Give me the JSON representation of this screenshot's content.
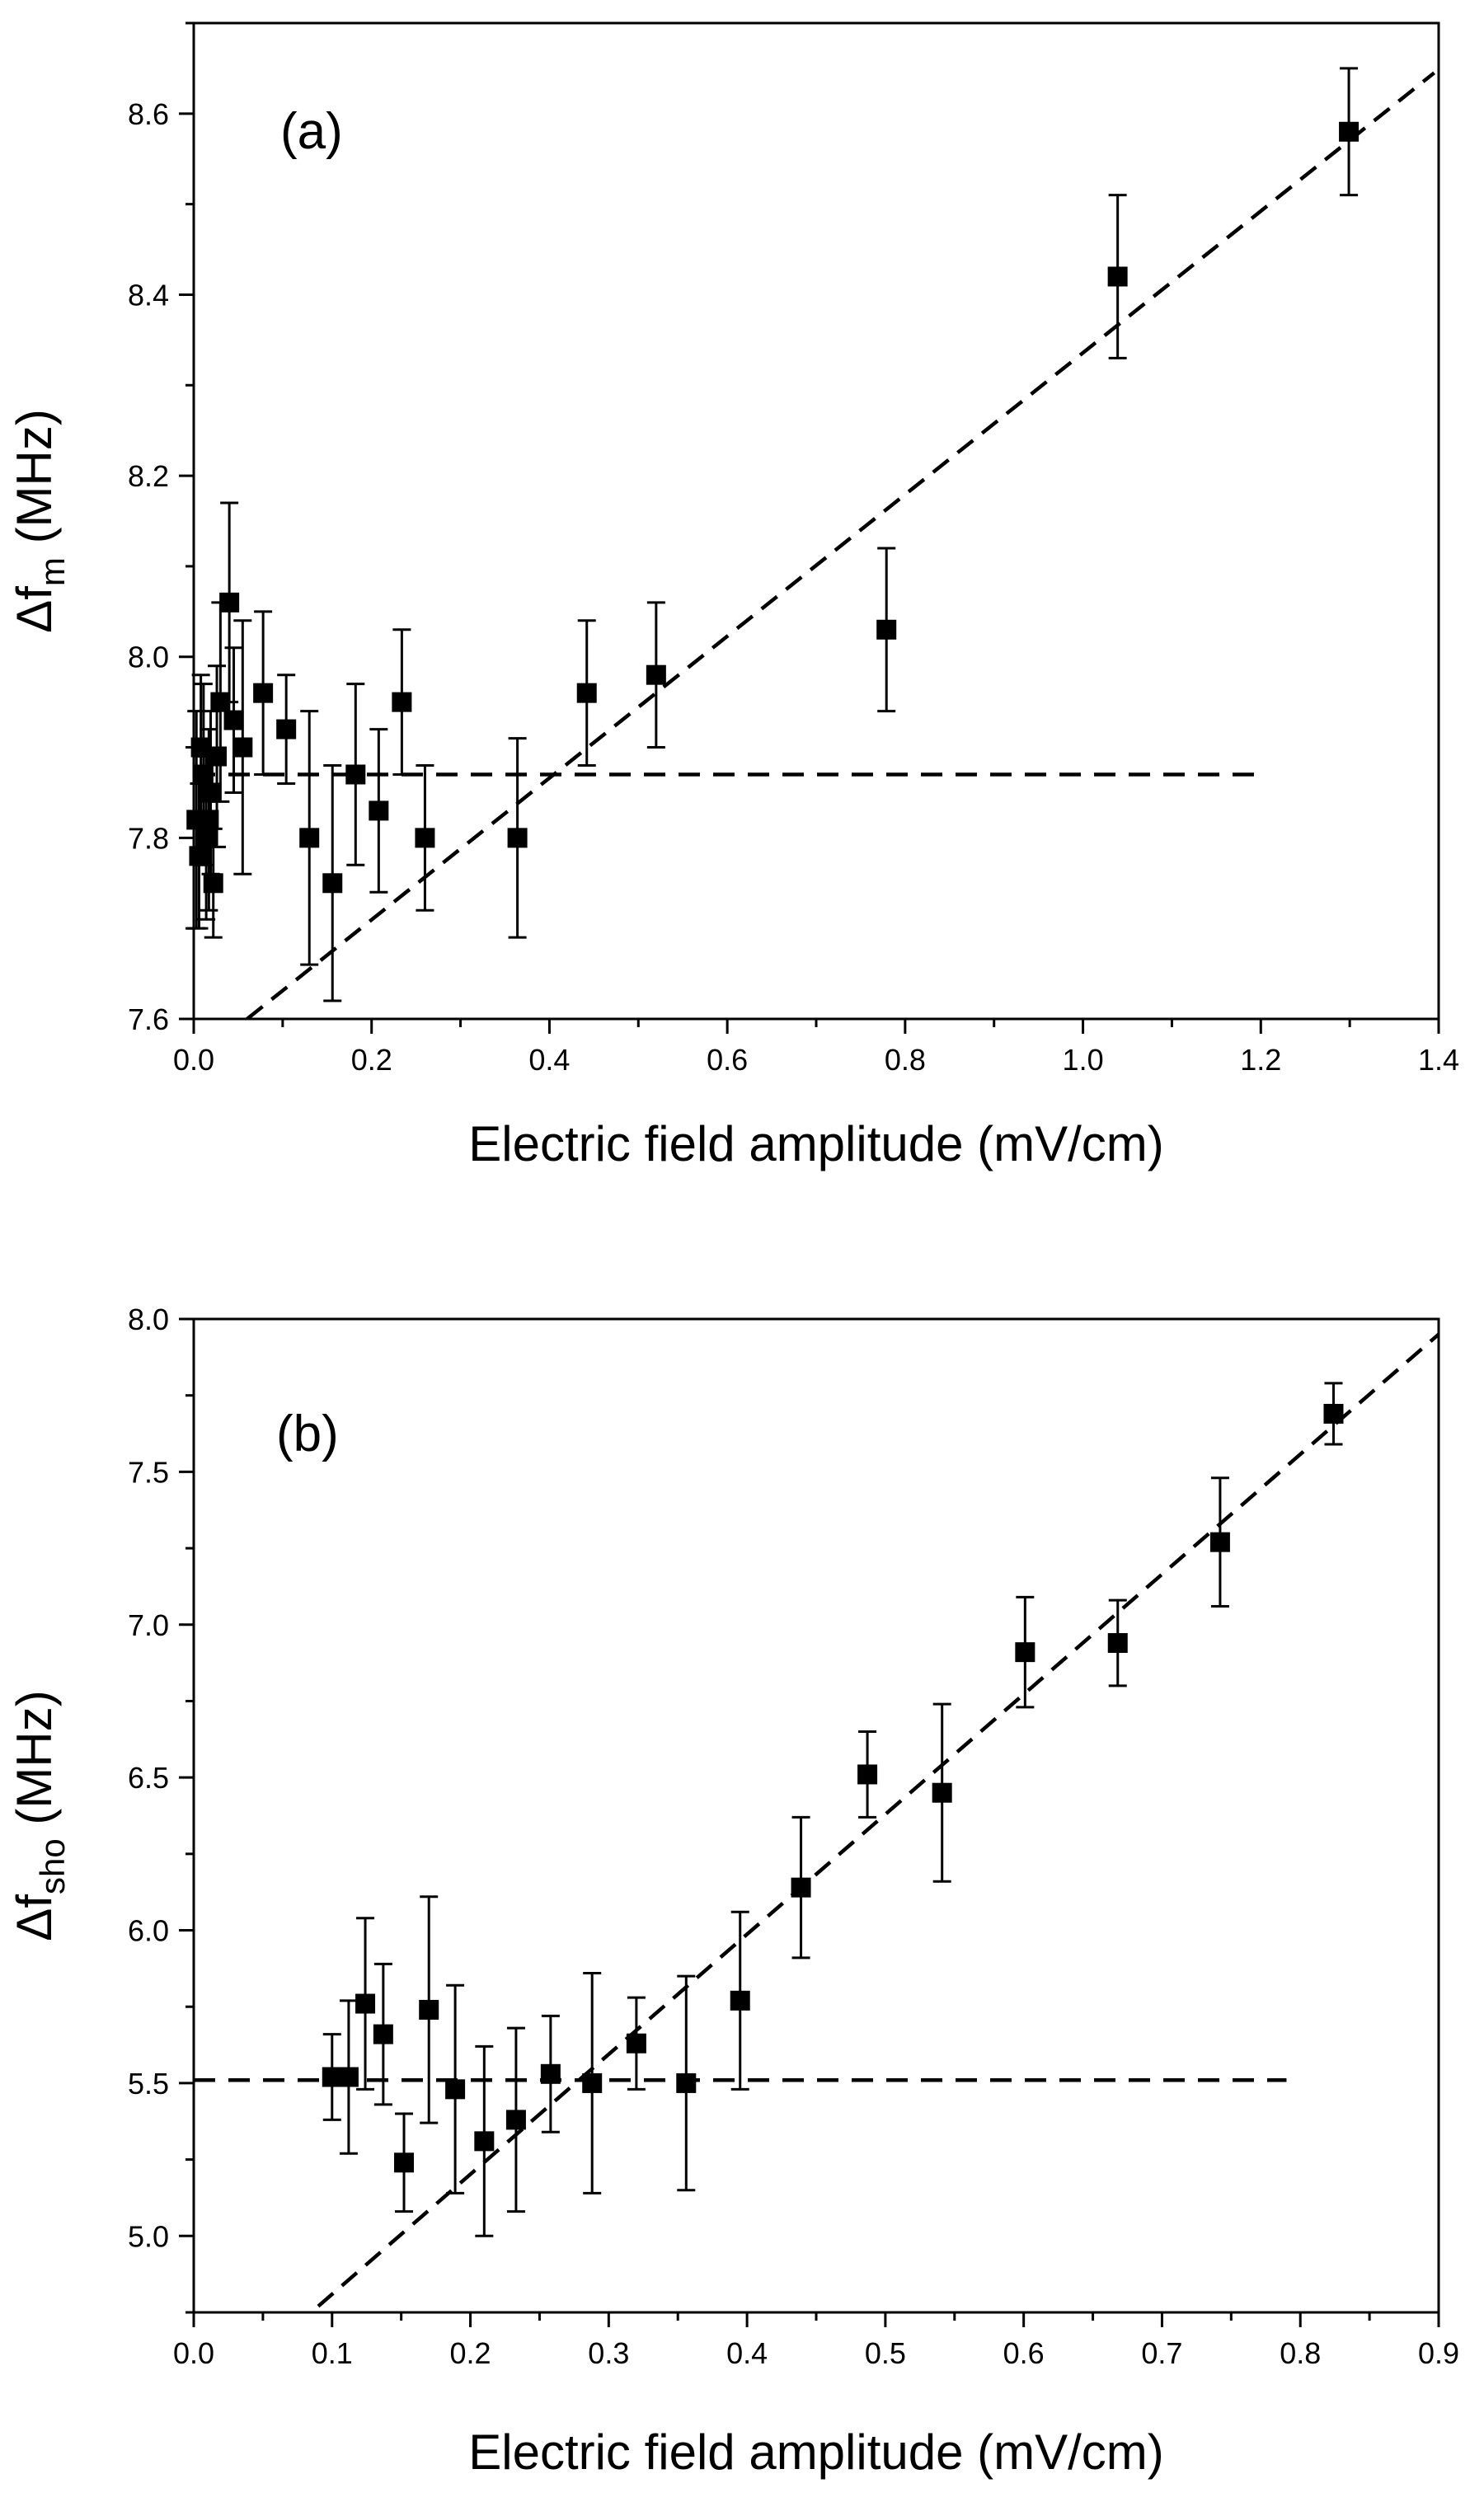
{
  "chart_data": [
    {
      "type": "scatter",
      "panel_label": "(a)",
      "xlabel": "Electric field amplitude (mV/cm)",
      "ylabel": "Δf",
      "ylabel_sub": "m",
      "ylabel_unit": " (MHz)",
      "xlim": [
        0.0,
        1.4
      ],
      "ylim": [
        7.6,
        8.7
      ],
      "xticks": [
        0.0,
        0.2,
        0.4,
        0.6,
        0.8,
        1.0,
        1.2,
        1.4
      ],
      "xtick_labels": [
        "0.0",
        "0.2",
        "0.4",
        "0.6",
        "0.8",
        "1.0",
        "1.2",
        "1.4"
      ],
      "yticks": [
        7.6,
        7.8,
        8.0,
        8.2,
        8.4,
        8.6
      ],
      "ytick_labels": [
        "7.6",
        "7.8",
        "8.0",
        "8.2",
        "8.4",
        "8.6"
      ],
      "series": [
        {
          "name": "data",
          "marker": "square",
          "points": [
            {
              "x": 0.003,
              "y": 7.82,
              "err": 0.12
            },
            {
              "x": 0.006,
              "y": 7.78,
              "err": 0.08
            },
            {
              "x": 0.008,
              "y": 7.9,
              "err": 0.08
            },
            {
              "x": 0.011,
              "y": 7.87,
              "err": 0.1
            },
            {
              "x": 0.014,
              "y": 7.8,
              "err": 0.09
            },
            {
              "x": 0.017,
              "y": 7.82,
              "err": 0.1
            },
            {
              "x": 0.019,
              "y": 7.85,
              "err": 0.09
            },
            {
              "x": 0.022,
              "y": 7.75,
              "err": 0.06
            },
            {
              "x": 0.026,
              "y": 7.89,
              "err": 0.1
            },
            {
              "x": 0.03,
              "y": 7.95,
              "err": 0.11
            },
            {
              "x": 0.04,
              "y": 8.06,
              "err": 0.11
            },
            {
              "x": 0.045,
              "y": 7.93,
              "err": 0.08
            },
            {
              "x": 0.055,
              "y": 7.9,
              "err": 0.14
            },
            {
              "x": 0.078,
              "y": 7.96,
              "err": 0.09
            },
            {
              "x": 0.104,
              "y": 7.92,
              "err": 0.06
            },
            {
              "x": 0.13,
              "y": 7.8,
              "err": 0.14
            },
            {
              "x": 0.156,
              "y": 7.75,
              "err": 0.13
            },
            {
              "x": 0.182,
              "y": 7.87,
              "err": 0.1
            },
            {
              "x": 0.208,
              "y": 7.83,
              "err": 0.09
            },
            {
              "x": 0.234,
              "y": 7.95,
              "err": 0.08
            },
            {
              "x": 0.26,
              "y": 7.8,
              "err": 0.08
            },
            {
              "x": 0.364,
              "y": 7.8,
              "err": 0.11
            },
            {
              "x": 0.442,
              "y": 7.96,
              "err": 0.08
            },
            {
              "x": 0.52,
              "y": 7.98,
              "err": 0.08
            },
            {
              "x": 0.779,
              "y": 8.03,
              "err": 0.09
            },
            {
              "x": 1.039,
              "y": 8.42,
              "err": 0.09
            },
            {
              "x": 1.299,
              "y": 8.58,
              "err": 0.07
            }
          ]
        }
      ],
      "lines": [
        {
          "name": "constant-fit",
          "style": "dashed",
          "x": [
            0.0,
            1.2
          ],
          "y": [
            7.87,
            7.87
          ]
        },
        {
          "name": "linear-fit",
          "style": "dashed",
          "x": [
            0.06,
            1.395
          ],
          "y": [
            7.6,
            8.645
          ]
        }
      ]
    },
    {
      "type": "scatter",
      "panel_label": "(b)",
      "xlabel": "Electric field amplitude (mV/cm)",
      "ylabel": "Δf",
      "ylabel_sub": "sho",
      "ylabel_unit": " (MHz)",
      "xlim": [
        0.0,
        0.9
      ],
      "ylim": [
        4.75,
        8.0
      ],
      "xticks": [
        0.0,
        0.1,
        0.2,
        0.3,
        0.4,
        0.5,
        0.6,
        0.7,
        0.8,
        0.9
      ],
      "xtick_labels": [
        "0.0",
        "0.1",
        "0.2",
        "0.3",
        "0.4",
        "0.5",
        "0.6",
        "0.7",
        "0.8",
        "0.9"
      ],
      "yticks": [
        5.0,
        5.5,
        6.0,
        6.5,
        7.0,
        7.5,
        8.0
      ],
      "ytick_labels": [
        "5.0",
        "5.5",
        "6.0",
        "6.5",
        "7.0",
        "7.5",
        "8.0"
      ],
      "series": [
        {
          "name": "data",
          "marker": "square",
          "points": [
            {
              "x": 0.1,
              "y": 5.52,
              "err": 0.14
            },
            {
              "x": 0.112,
              "y": 5.52,
              "err": 0.25
            },
            {
              "x": 0.124,
              "y": 5.76,
              "err": 0.28
            },
            {
              "x": 0.137,
              "y": 5.66,
              "err": 0.23
            },
            {
              "x": 0.152,
              "y": 5.24,
              "err": 0.16
            },
            {
              "x": 0.17,
              "y": 5.74,
              "err": 0.37
            },
            {
              "x": 0.189,
              "y": 5.48,
              "err": 0.34
            },
            {
              "x": 0.21,
              "y": 5.31,
              "err": 0.31
            },
            {
              "x": 0.233,
              "y": 5.38,
              "err": 0.3
            },
            {
              "x": 0.258,
              "y": 5.53,
              "err": 0.19
            },
            {
              "x": 0.288,
              "y": 5.5,
              "err": 0.36
            },
            {
              "x": 0.32,
              "y": 5.63,
              "err": 0.15
            },
            {
              "x": 0.356,
              "y": 5.5,
              "err": 0.35
            },
            {
              "x": 0.395,
              "y": 5.77,
              "err": 0.29
            },
            {
              "x": 0.439,
              "y": 6.14,
              "err": 0.23
            },
            {
              "x": 0.487,
              "y": 6.51,
              "err": 0.14
            },
            {
              "x": 0.541,
              "y": 6.45,
              "err": 0.29
            },
            {
              "x": 0.601,
              "y": 6.91,
              "err": 0.18
            },
            {
              "x": 0.668,
              "y": 6.94,
              "err": 0.14
            },
            {
              "x": 0.742,
              "y": 7.27,
              "err": 0.21
            },
            {
              "x": 0.824,
              "y": 7.69,
              "err": 0.1
            }
          ]
        }
      ],
      "lines": [
        {
          "name": "constant-fit",
          "style": "dashed",
          "x": [
            0.0,
            0.79
          ],
          "y": [
            5.51,
            5.51
          ]
        },
        {
          "name": "linear-fit",
          "style": "dashed",
          "x": [
            0.09,
            0.9
          ],
          "y": [
            4.77,
            7.95
          ]
        }
      ]
    }
  ]
}
